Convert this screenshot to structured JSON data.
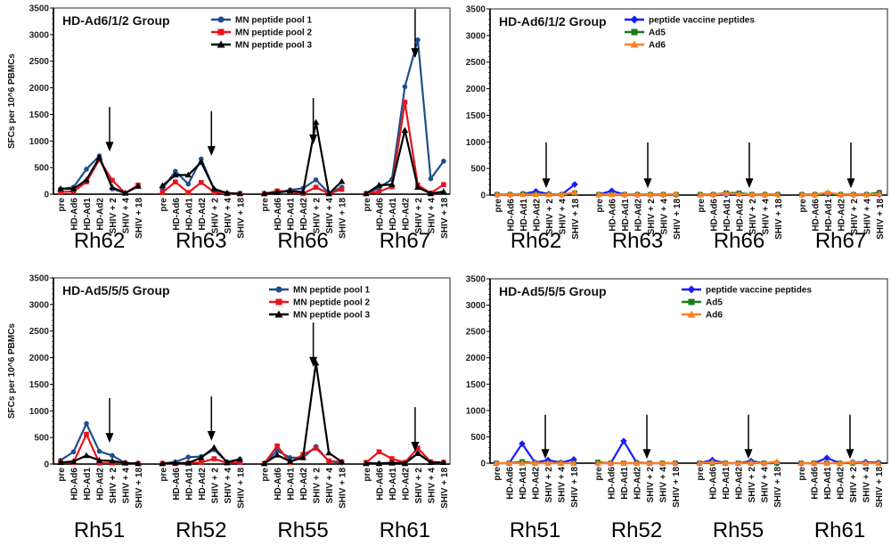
{
  "chart_data": [
    {
      "type": "line",
      "title": "HD-Ad6/1/2 Group",
      "ylabel": "SFCs per 10^6 PBMCs",
      "ylim": [
        0,
        3500
      ],
      "yticks": [
        0,
        500,
        1000,
        1500,
        2000,
        2500,
        3000,
        3500
      ],
      "timepoints": [
        "pre",
        "HD-Ad6",
        "HD-Ad1",
        "HD-Ad2",
        "SHIV + 2",
        "SHIV + 4",
        "SHIV + 18"
      ],
      "legend_position": "top-right",
      "series_names": [
        "MN peptide pool 1",
        "MN peptide pool 2",
        "MN peptide pool 3"
      ],
      "series_colors": [
        "#1f4e8c",
        "#e8141c",
        "#000000"
      ],
      "series_markers": [
        "circle",
        "square",
        "triangle"
      ],
      "groups": [
        {
          "name": "Rh62",
          "arrow": [
            1640,
            800
          ],
          "series": [
            [
              100,
              130,
              470,
              720,
              100,
              20,
              150
            ],
            [
              40,
              50,
              230,
              650,
              260,
              20,
              170
            ],
            [
              100,
              100,
              270,
              690,
              130,
              20,
              150
            ]
          ]
        },
        {
          "name": "Rh63",
          "arrow": [
            1560,
            720
          ],
          "series": [
            [
              100,
              430,
              190,
              660,
              90,
              20,
              10
            ],
            [
              30,
              230,
              30,
              220,
              40,
              10,
              10
            ],
            [
              160,
              360,
              360,
              600,
              100,
              20,
              10
            ]
          ]
        },
        {
          "name": "Rh66",
          "arrow": [
            1810,
            940
          ],
          "series": [
            [
              10,
              30,
              80,
              110,
              270,
              20,
              130
            ],
            [
              10,
              60,
              50,
              10,
              130,
              10,
              90
            ],
            [
              10,
              30,
              60,
              40,
              1350,
              10,
              240
            ]
          ]
        },
        {
          "name": "Rh67",
          "arrow": [
            3480,
            2560
          ],
          "series": [
            [
              10,
              120,
              280,
              2020,
              2900,
              290,
              620
            ],
            [
              10,
              50,
              140,
              1730,
              170,
              20,
              180
            ],
            [
              10,
              170,
              180,
              1200,
              130,
              10,
              50
            ]
          ]
        }
      ]
    },
    {
      "type": "line",
      "title": "HD-Ad6/1/2 Group",
      "ylabel": "",
      "ylim": [
        0,
        3500
      ],
      "yticks": [
        0,
        500,
        1000,
        1500,
        2000,
        2500,
        3000,
        3500
      ],
      "timepoints": [
        "pre",
        "HD-Ad6",
        "HD-Ad1",
        "HD-Ad2",
        "SHIV + 2",
        "SHIV + 4",
        "SHIV + 18"
      ],
      "legend_position": "top-right",
      "series_names": [
        "peptide vaccine peptides",
        "Ad5",
        "Ad6"
      ],
      "series_colors": [
        "#1a1aff",
        "#1a7a1a",
        "#ff7f27"
      ],
      "series_markers": [
        "diamond",
        "square",
        "triangle"
      ],
      "groups": [
        {
          "name": "Rh62",
          "arrow": [
            990,
            130
          ],
          "series": [
            [
              10,
              10,
              20,
              70,
              20,
              10,
              200
            ],
            [
              10,
              10,
              20,
              20,
              10,
              10,
              40
            ],
            [
              10,
              10,
              10,
              10,
              10,
              10,
              50
            ]
          ]
        },
        {
          "name": "Rh63",
          "arrow": [
            990,
            130
          ],
          "series": [
            [
              10,
              80,
              10,
              10,
              10,
              10,
              10
            ],
            [
              10,
              10,
              10,
              10,
              10,
              10,
              10
            ],
            [
              10,
              10,
              10,
              10,
              10,
              10,
              20
            ]
          ]
        },
        {
          "name": "Rh66",
          "arrow": [
            990,
            130
          ],
          "series": [
            [
              10,
              10,
              10,
              20,
              10,
              10,
              10
            ],
            [
              10,
              10,
              40,
              40,
              10,
              10,
              10
            ],
            [
              10,
              10,
              30,
              20,
              10,
              10,
              10
            ]
          ]
        },
        {
          "name": "Rh67",
          "arrow": [
            990,
            130
          ],
          "series": [
            [
              10,
              10,
              20,
              10,
              10,
              10,
              10
            ],
            [
              10,
              10,
              30,
              10,
              10,
              10,
              50
            ],
            [
              10,
              10,
              50,
              10,
              10,
              10,
              20
            ]
          ]
        }
      ]
    },
    {
      "type": "line",
      "title": "HD-Ad5/5/5 Group",
      "ylabel": "SFCs per 10^6 PBMCs",
      "ylim": [
        0,
        3500
      ],
      "yticks": [
        0,
        500,
        1000,
        1500,
        2000,
        2500,
        3000,
        3500
      ],
      "timepoints": [
        "pre",
        "HD-Ad6",
        "HD-Ad1",
        "HD-Ad2",
        "SHIV + 2",
        "SHIV + 4",
        "SHIV + 18"
      ],
      "legend_position": "top-right",
      "series_names": [
        "MN peptide pool 1",
        "MN peptide pool 2",
        "MN peptide pool 3"
      ],
      "series_colors": [
        "#1f4e8c",
        "#e8141c",
        "#000000"
      ],
      "series_markers": [
        "circle",
        "square",
        "triangle"
      ],
      "groups": [
        {
          "name": "Rh51",
          "arrow": [
            1240,
            400
          ],
          "series": [
            [
              70,
              230,
              760,
              240,
              160,
              20,
              10
            ],
            [
              30,
              30,
              560,
              20,
              20,
              20,
              10
            ],
            [
              30,
              50,
              160,
              70,
              60,
              20,
              10
            ]
          ]
        },
        {
          "name": "Rh52",
          "arrow": [
            1270,
            435
          ],
          "series": [
            [
              10,
              40,
              130,
              140,
              270,
              40,
              90
            ],
            [
              10,
              10,
              20,
              30,
              100,
              20,
              30
            ],
            [
              10,
              20,
              20,
              120,
              310,
              30,
              90
            ]
          ]
        },
        {
          "name": "Rh55",
          "arrow": [
            2660,
            1830
          ],
          "series": [
            [
              10,
              250,
              120,
              120,
              330,
              50,
              20
            ],
            [
              10,
              340,
              30,
              180,
              300,
              60,
              40
            ],
            [
              10,
              170,
              50,
              120,
              1900,
              210,
              40
            ]
          ]
        },
        {
          "name": "Rh61",
          "arrow": [
            1070,
            235
          ],
          "series": [
            [
              30,
              10,
              30,
              20,
              200,
              30,
              30
            ],
            [
              30,
              230,
              100,
              30,
              300,
              40,
              30
            ],
            [
              10,
              10,
              20,
              10,
              200,
              30,
              30
            ]
          ]
        }
      ]
    },
    {
      "type": "line",
      "title": "HD-Ad5/5/5 Group",
      "ylabel": "",
      "ylim": [
        0,
        3500
      ],
      "yticks": [
        0,
        500,
        1000,
        1500,
        2000,
        2500,
        3000,
        3500
      ],
      "timepoints": [
        "pre",
        "HD-Ad6",
        "HD-Ad1",
        "HD-Ad2",
        "SHIV + 2",
        "SHIV + 4",
        "SHIV + 18"
      ],
      "legend_position": "top-right",
      "series_names": [
        "peptide vaccine peptides",
        "Ad5",
        "Ad6"
      ],
      "series_colors": [
        "#1a1aff",
        "#1a7a1a",
        "#ff7f27"
      ],
      "series_markers": [
        "diamond",
        "square",
        "triangle"
      ],
      "groups": [
        {
          "name": "Rh51",
          "arrow": [
            920,
            80
          ],
          "series": [
            [
              0,
              0,
              370,
              10,
              60,
              10,
              70
            ],
            [
              0,
              0,
              30,
              0,
              0,
              0,
              0
            ],
            [
              0,
              0,
              0,
              0,
              0,
              0,
              0
            ]
          ]
        },
        {
          "name": "Rh52",
          "arrow": [
            920,
            80
          ],
          "series": [
            [
              0,
              0,
              420,
              10,
              0,
              0,
              0
            ],
            [
              20,
              0,
              0,
              0,
              0,
              0,
              0
            ],
            [
              0,
              0,
              0,
              0,
              0,
              0,
              0
            ]
          ]
        },
        {
          "name": "Rh55",
          "arrow": [
            920,
            80
          ],
          "series": [
            [
              0,
              60,
              0,
              0,
              40,
              0,
              0
            ],
            [
              0,
              0,
              0,
              0,
              0,
              0,
              0
            ],
            [
              0,
              20,
              0,
              0,
              10,
              0,
              30
            ]
          ]
        },
        {
          "name": "Rh61",
          "arrow": [
            920,
            80
          ],
          "series": [
            [
              0,
              0,
              100,
              0,
              20,
              20,
              10
            ],
            [
              0,
              0,
              0,
              0,
              0,
              0,
              0
            ],
            [
              0,
              0,
              0,
              0,
              20,
              0,
              0
            ]
          ]
        }
      ]
    }
  ]
}
